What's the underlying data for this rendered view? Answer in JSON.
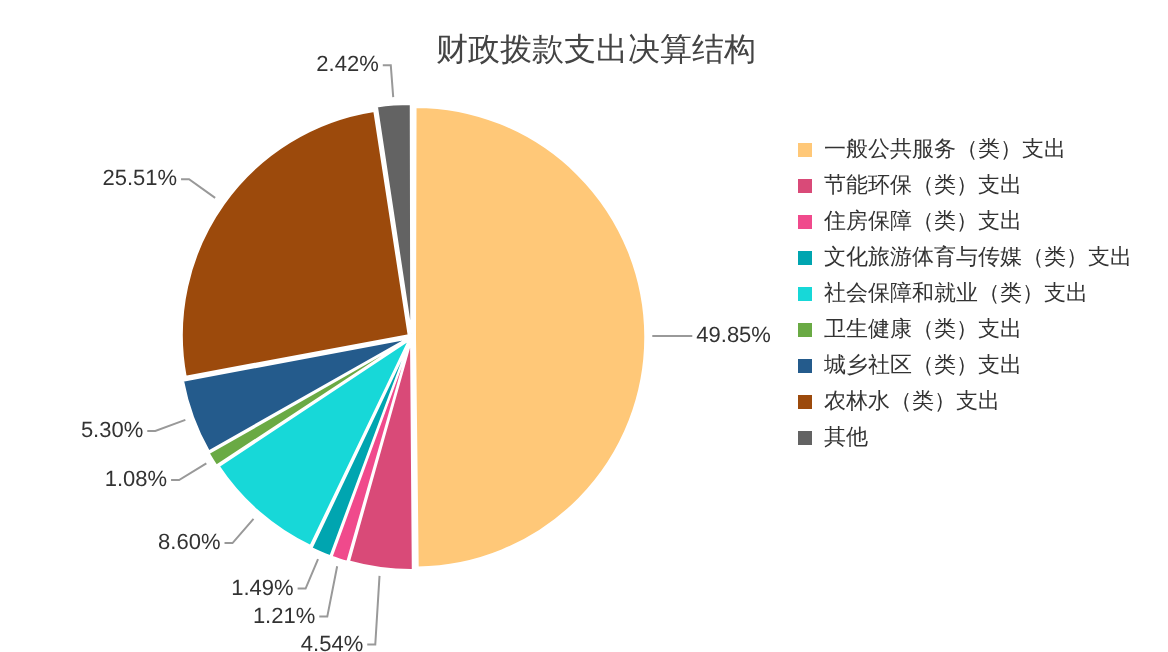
{
  "chart_data": {
    "type": "pie",
    "title": "财政拨款支出决算结构",
    "categories": [
      "一般公共服务（类）支出",
      "节能环保（类）支出",
      "住房保障（类）支出",
      "文化旅游体育与传媒（类）支出",
      "社会保障和就业（类）支出",
      "卫生健康（类）支出",
      "城乡社区（类）支出",
      "农林水（类）支出",
      "其他"
    ],
    "values": [
      49.85,
      4.54,
      1.21,
      1.49,
      8.6,
      1.08,
      5.3,
      25.51,
      2.42
    ],
    "colors": [
      "#ffc878",
      "#d94a78",
      "#f04a8c",
      "#00a5b0",
      "#17d8d8",
      "#6aaa44",
      "#245b8c",
      "#9c4a0c",
      "#636363"
    ],
    "value_labels": [
      "49.85%",
      "4.54%",
      "1.21%",
      "1.49%",
      "8.60%",
      "1.08%",
      "5.30%",
      "25.51%",
      "2.42%"
    ],
    "legend": "right"
  }
}
